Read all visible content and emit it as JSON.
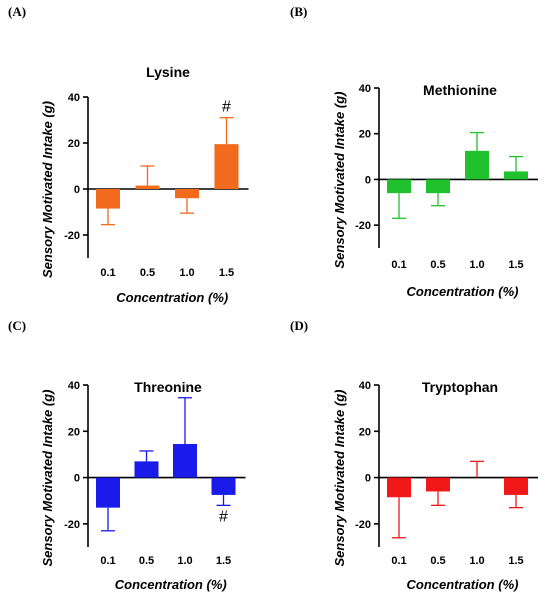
{
  "chart_data": [
    {
      "panel": "(A)",
      "type": "bar",
      "title": "Lysine",
      "xlabel": "Concentration (%)",
      "ylabel": "Sensory Motivated Intake (g)",
      "categories": [
        "0.1",
        "0.5",
        "1.0",
        "1.5"
      ],
      "values": [
        -8.5,
        1.5,
        -4,
        19.5
      ],
      "error": [
        7,
        8.5,
        6.5,
        11.5
      ],
      "ylim": [
        -30,
        40
      ],
      "yticks": [
        -20,
        0,
        20,
        40
      ],
      "color": "#f26a1b",
      "annotations": [
        {
          "category": "1.5",
          "text": "#",
          "position": "above"
        }
      ]
    },
    {
      "panel": "(B)",
      "type": "bar",
      "title": "Methionine",
      "xlabel": "Concentration (%)",
      "ylabel": "Sensory Motivated Intake (g)",
      "categories": [
        "0.1",
        "0.5",
        "1.0",
        "1.5"
      ],
      "values": [
        -6,
        -6,
        12.5,
        3.5
      ],
      "error": [
        11,
        5.5,
        8,
        6.5
      ],
      "ylim": [
        -30,
        40
      ],
      "yticks": [
        -20,
        0,
        20,
        40
      ],
      "color": "#1fc12d",
      "annotations": []
    },
    {
      "panel": "(C)",
      "type": "bar",
      "title": "Threonine",
      "xlabel": "Concentration (%)",
      "ylabel": "Sensory Motivated Intake (g)",
      "categories": [
        "0.1",
        "0.5",
        "1.0",
        "1.5"
      ],
      "values": [
        -13,
        7,
        14.5,
        -7.5
      ],
      "error": [
        10,
        4.5,
        20,
        4.5
      ],
      "ylim": [
        -30,
        40
      ],
      "yticks": [
        -20,
        0,
        20,
        40
      ],
      "color": "#1a1aeb",
      "annotations": [
        {
          "category": "1.5",
          "text": "#",
          "position": "below"
        }
      ]
    },
    {
      "panel": "(D)",
      "type": "bar",
      "title": "Tryptophan",
      "xlabel": "Concentration (%)",
      "ylabel": "Sensory Motivated Intake (g)",
      "categories": [
        "0.1",
        "0.5",
        "1.0",
        "1.5"
      ],
      "values": [
        -8.5,
        -6,
        0,
        -7.5
      ],
      "error": [
        17.5,
        6,
        7,
        5.5
      ],
      "ylim": [
        -30,
        40
      ],
      "yticks": [
        -20,
        0,
        20,
        40
      ],
      "color": "#f01818",
      "annotations": []
    }
  ]
}
